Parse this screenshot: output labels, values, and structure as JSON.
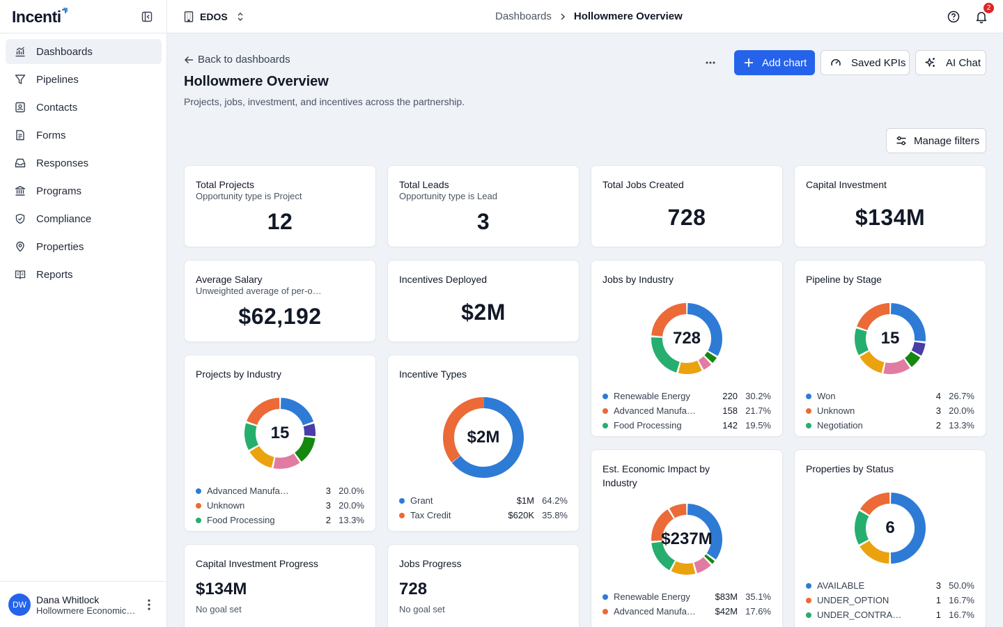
{
  "app": {
    "logo_text": "Incenti"
  },
  "sidebar": {
    "items": [
      {
        "label": "Dashboards",
        "icon": "chart-icon",
        "active": true
      },
      {
        "label": "Pipelines",
        "icon": "filter-icon"
      },
      {
        "label": "Contacts",
        "icon": "contact-icon"
      },
      {
        "label": "Forms",
        "icon": "form-icon"
      },
      {
        "label": "Responses",
        "icon": "inbox-icon"
      },
      {
        "label": "Programs",
        "icon": "bank-icon"
      },
      {
        "label": "Compliance",
        "icon": "shield-icon"
      },
      {
        "label": "Properties",
        "icon": "map-pin-icon"
      },
      {
        "label": "Reports",
        "icon": "book-icon"
      }
    ],
    "user": {
      "initials": "DW",
      "name": "Dana Whitlock",
      "org": "Hollowmere Economic Development"
    }
  },
  "topbar": {
    "org": "EDOS",
    "breadcrumb": [
      "Dashboards",
      "Hollowmere Overview"
    ],
    "notification_count": "2"
  },
  "page": {
    "back_label": "Back to dashboards",
    "title": "Hollowmere Overview",
    "subtitle": "Projects, jobs, investment, and incentives across the partnership.",
    "buttons": {
      "add_chart": "Add chart",
      "saved_kpis": "Saved KPIs",
      "ai_chat": "AI Chat",
      "manage_filters": "Manage filters"
    }
  },
  "colors": {
    "blue": "#2e7bd6",
    "orange": "#eb6a37",
    "green": "#26ae6e",
    "yellow": "#eaa20f",
    "pink": "#e27ba1",
    "dkgreen": "#15880f",
    "purple": "#4a3da8",
    "accent": "#2563eb"
  },
  "kpis": {
    "total_projects": {
      "title": "Total Projects",
      "sub": "Opportunity type is Project",
      "value": "12"
    },
    "total_leads": {
      "title": "Total Leads",
      "sub": "Opportunity type is Lead",
      "value": "3"
    },
    "total_jobs": {
      "title": "Total Jobs Created",
      "value": "728"
    },
    "capital_investment": {
      "title": "Capital Investment",
      "value": "$134M"
    },
    "avg_salary": {
      "title": "Average Salary",
      "sub": "Unweighted average of per-opportunity salaries",
      "value": "$62,192"
    },
    "incentives_deployed": {
      "title": "Incentives Deployed",
      "value": "$2M"
    }
  },
  "progress": {
    "capital": {
      "title": "Capital Investment Progress",
      "value": "$134M",
      "note": "No goal set"
    },
    "jobs": {
      "title": "Jobs Progress",
      "value": "728",
      "note": "No goal set"
    }
  },
  "chart_data": [
    {
      "id": "jobs_by_industry",
      "type": "pie",
      "title": "Jobs by Industry",
      "center": "728",
      "slices": [
        {
          "name": "Renewable Energy",
          "display": "220",
          "pct": 30.2,
          "color": "blue"
        },
        {
          "name": "",
          "pct": 3.5,
          "color": "dkgreen"
        },
        {
          "name": "",
          "pct": 4.5,
          "color": "pink"
        },
        {
          "name": "",
          "pct": 10.6,
          "color": "yellow"
        },
        {
          "name": "Food Processing",
          "display": "142",
          "pct": 19.5,
          "color": "green"
        },
        {
          "name": "Advanced Manufacturing",
          "display": "158",
          "pct": 21.7,
          "color": "orange"
        }
      ],
      "legend": [
        {
          "name": "Renewable Energy",
          "display": "220",
          "pct": "30.2%",
          "color": "blue"
        },
        {
          "name": "Advanced Manufacturing",
          "display": "158",
          "pct": "21.7%",
          "color": "orange"
        },
        {
          "name": "Food Processing",
          "display": "142",
          "pct": "19.5%",
          "color": "green"
        }
      ]
    },
    {
      "id": "pipeline_by_stage",
      "type": "pie",
      "title": "Pipeline by Stage",
      "center": "15",
      "slices": [
        {
          "name": "Won",
          "display": "4",
          "pct": 26.7,
          "color": "blue"
        },
        {
          "name": "",
          "pct": 6.7,
          "color": "purple"
        },
        {
          "name": "",
          "pct": 6.7,
          "color": "dkgreen"
        },
        {
          "name": "",
          "pct": 13.3,
          "color": "pink"
        },
        {
          "name": "",
          "pct": 13.3,
          "color": "yellow"
        },
        {
          "name": "Negotiation",
          "display": "2",
          "pct": 13.3,
          "color": "green"
        },
        {
          "name": "Unknown",
          "display": "3",
          "pct": 20.0,
          "color": "orange"
        }
      ],
      "legend": [
        {
          "name": "Won",
          "display": "4",
          "pct": "26.7%",
          "color": "blue"
        },
        {
          "name": "Unknown",
          "display": "3",
          "pct": "20.0%",
          "color": "orange"
        },
        {
          "name": "Negotiation",
          "display": "2",
          "pct": "13.3%",
          "color": "green"
        }
      ]
    },
    {
      "id": "projects_by_industry",
      "type": "pie",
      "title": "Projects by Industry",
      "center": "15",
      "slices": [
        {
          "name": "Advanced Manufacturing",
          "display": "3",
          "pct": 20.0,
          "color": "blue"
        },
        {
          "name": "",
          "pct": 6.7,
          "color": "purple"
        },
        {
          "name": "",
          "pct": 13.3,
          "color": "dkgreen"
        },
        {
          "name": "",
          "pct": 13.3,
          "color": "pink"
        },
        {
          "name": "",
          "pct": 13.3,
          "color": "yellow"
        },
        {
          "name": "Food Processing",
          "display": "2",
          "pct": 13.3,
          "color": "green"
        },
        {
          "name": "Unknown",
          "display": "3",
          "pct": 20.0,
          "color": "orange"
        }
      ],
      "legend": [
        {
          "name": "Advanced Manufacturing",
          "display": "3",
          "pct": "20.0%",
          "color": "blue"
        },
        {
          "name": "Unknown",
          "display": "3",
          "pct": "20.0%",
          "color": "orange"
        },
        {
          "name": "Food Processing",
          "display": "2",
          "pct": "13.3%",
          "color": "green"
        }
      ]
    },
    {
      "id": "incentive_types",
      "type": "pie",
      "title": "Incentive Types",
      "center": "$2M",
      "slices": [
        {
          "name": "Grant",
          "display": "$1M",
          "pct": 64.2,
          "color": "blue"
        },
        {
          "name": "Tax Credit",
          "display": "$620K",
          "pct": 35.8,
          "color": "orange"
        }
      ],
      "legend": [
        {
          "name": "Grant",
          "display": "$1M",
          "pct": "64.2%",
          "color": "blue"
        },
        {
          "name": "Tax Credit",
          "display": "$620K",
          "pct": "35.8%",
          "color": "orange"
        }
      ]
    },
    {
      "id": "economic_impact",
      "type": "pie",
      "title": "Est. Economic Impact by Industry",
      "center": "$237M",
      "slices": [
        {
          "name": "Renewable Energy",
          "display": "$83M",
          "pct": 35.1,
          "color": "blue"
        },
        {
          "name": "",
          "pct": 2.5,
          "color": "dkgreen"
        },
        {
          "name": "",
          "pct": 8.0,
          "color": "pink"
        },
        {
          "name": "",
          "pct": 12.0,
          "color": "yellow"
        },
        {
          "name": "",
          "pct": 16.0,
          "color": "green"
        },
        {
          "name": "Advanced Manufacturing",
          "display": "$42M",
          "pct": 17.6,
          "color": "orange"
        },
        {
          "name": "",
          "pct": 8.8,
          "color": "orange"
        }
      ],
      "legend": [
        {
          "name": "Renewable Energy",
          "display": "$83M",
          "pct": "35.1%",
          "color": "blue"
        },
        {
          "name": "Advanced Manufacturing",
          "display": "$42M",
          "pct": "17.6%",
          "color": "orange"
        }
      ]
    },
    {
      "id": "properties_by_status",
      "type": "pie",
      "title": "Properties by Status",
      "center": "6",
      "slices": [
        {
          "name": "AVAILABLE",
          "display": "3",
          "pct": 50.0,
          "color": "blue"
        },
        {
          "name": "",
          "pct": 16.7,
          "color": "yellow"
        },
        {
          "name": "UNDER_CONTRACT",
          "display": "1",
          "pct": 16.7,
          "color": "green"
        },
        {
          "name": "UNDER_OPTION",
          "display": "1",
          "pct": 16.6,
          "color": "orange"
        }
      ],
      "legend": [
        {
          "name": "AVAILABLE",
          "display": "3",
          "pct": "50.0%",
          "color": "blue"
        },
        {
          "name": "UNDER_OPTION",
          "display": "1",
          "pct": "16.7%",
          "color": "orange"
        },
        {
          "name": "UNDER_CONTRACT",
          "display": "1",
          "pct": "16.7%",
          "color": "green"
        }
      ]
    }
  ]
}
